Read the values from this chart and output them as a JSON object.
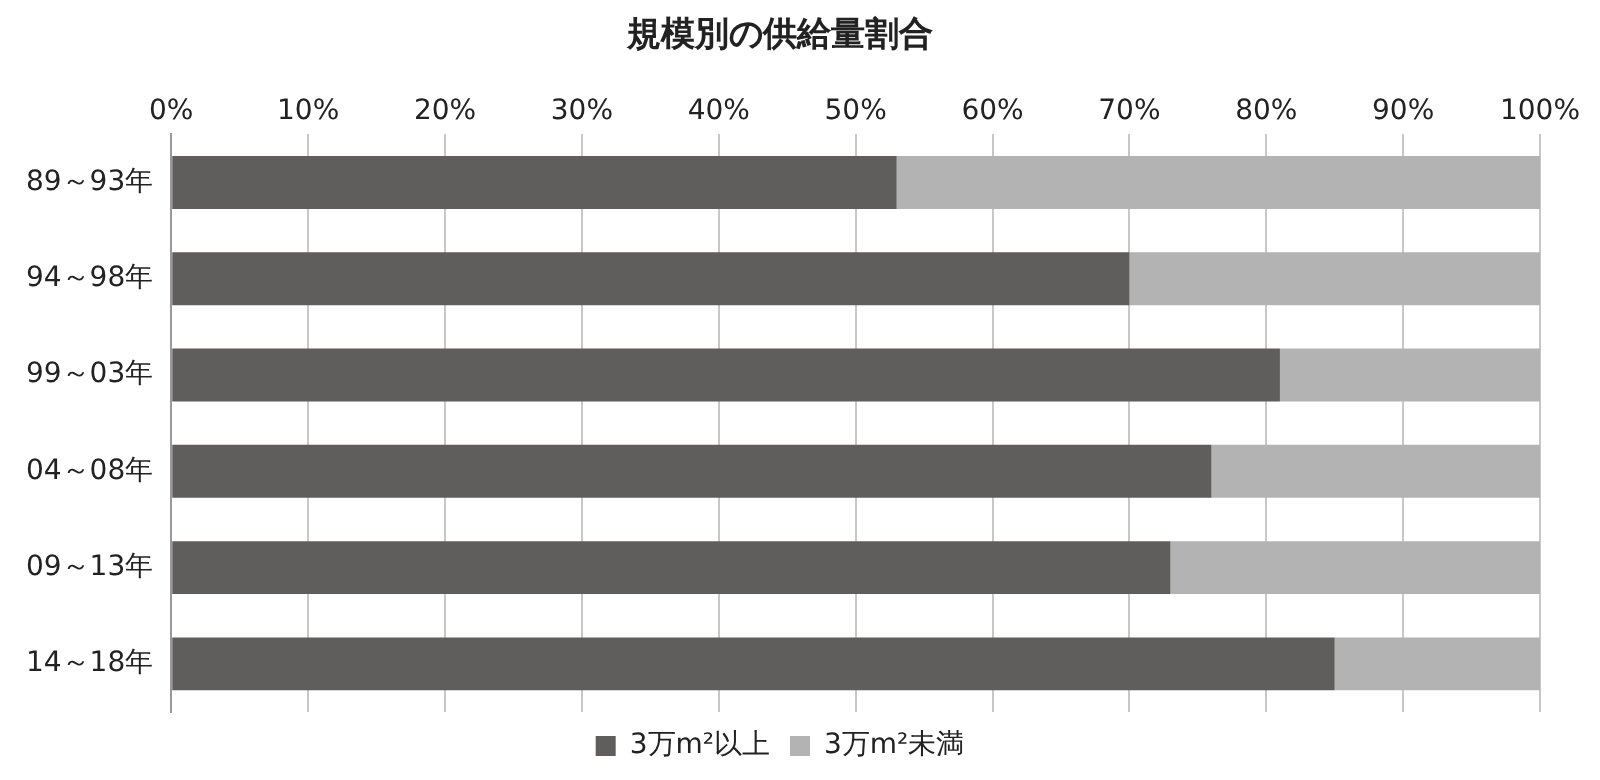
{
  "chart_data": {
    "type": "bar",
    "orientation": "horizontal",
    "stacked": true,
    "title": "規模別の供給量割合",
    "categories": [
      "89～93年",
      "94～98年",
      "99～03年",
      "04～08年",
      "09～13年",
      "14～18年"
    ],
    "series": [
      {
        "name": "3万m²以上",
        "color": "#5f5e5c",
        "values": [
          53,
          70,
          81,
          76,
          73,
          85
        ]
      },
      {
        "name": "3万m²未満",
        "color": "#b4b3b3",
        "values": [
          47,
          30,
          19,
          24,
          27,
          15
        ]
      }
    ],
    "xlim": [
      0,
      100
    ],
    "xticks": [
      {
        "value": 0,
        "label": "0%"
      },
      {
        "value": 10,
        "label": "10%"
      },
      {
        "value": 20,
        "label": "20%"
      },
      {
        "value": 30,
        "label": "30%"
      },
      {
        "value": 40,
        "label": "40%"
      },
      {
        "value": 50,
        "label": "50%"
      },
      {
        "value": 60,
        "label": "60%"
      },
      {
        "value": 70,
        "label": "70%"
      },
      {
        "value": 80,
        "label": "80%"
      },
      {
        "value": 90,
        "label": "90%"
      },
      {
        "value": 100,
        "label": "100%"
      }
    ],
    "grid": "x",
    "legend": "bottom"
  }
}
